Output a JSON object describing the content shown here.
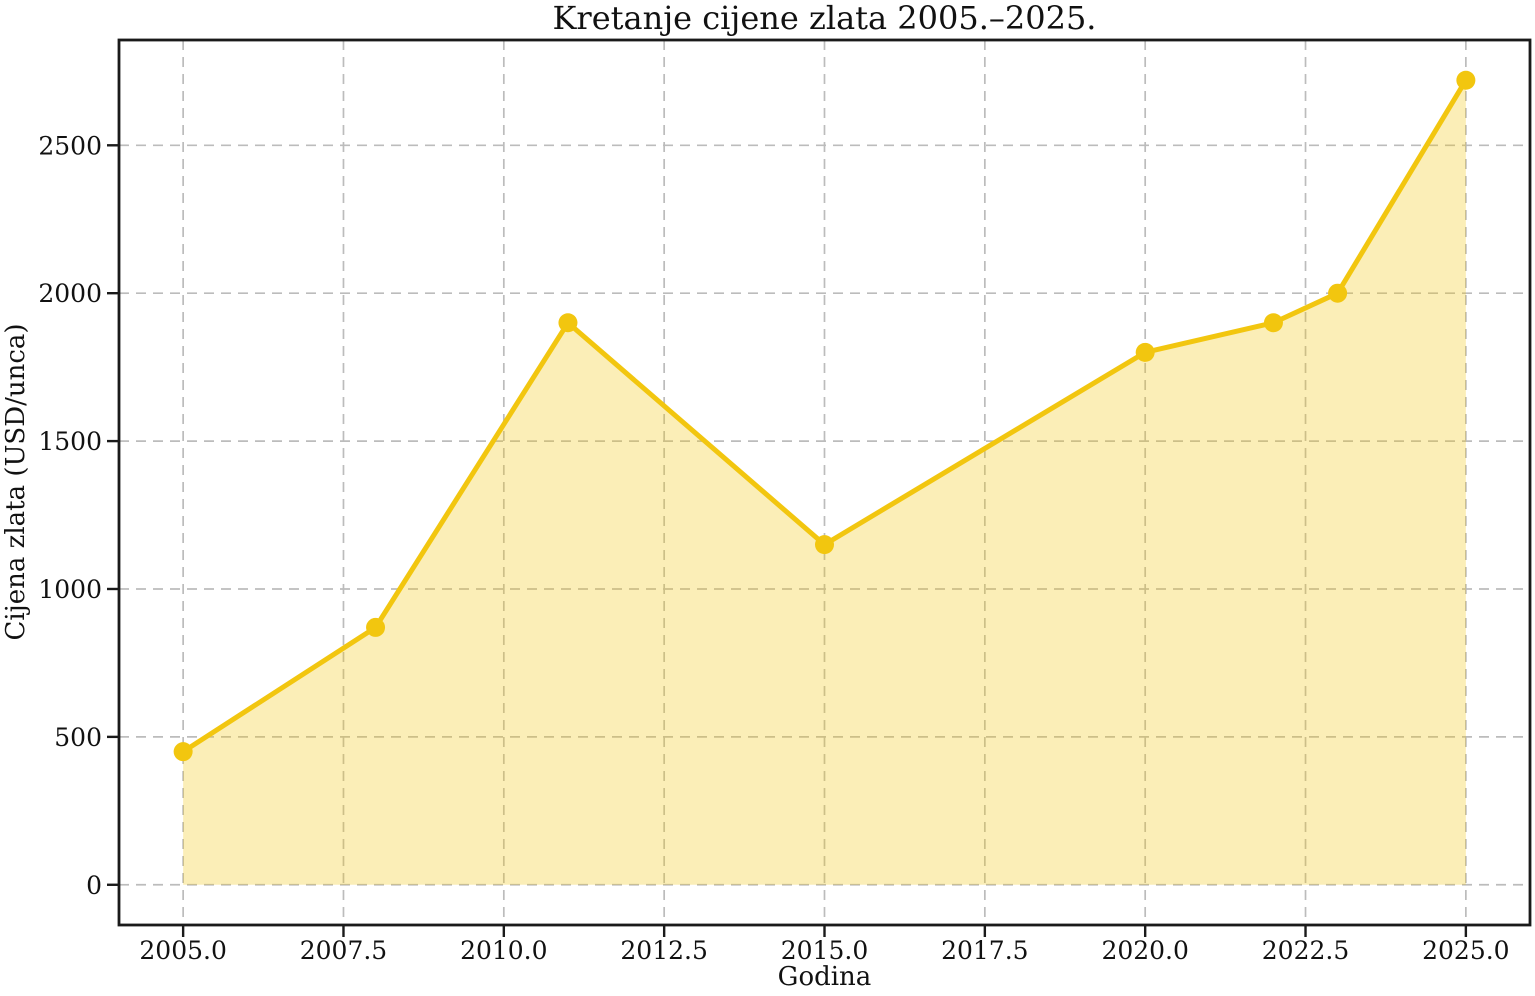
{
  "chart_data": {
    "type": "area",
    "title": "Kretanje cijene zlata 2005.–2025.",
    "xlabel": "Godina",
    "ylabel": "Cijena zlata (USD/unca)",
    "series": [
      {
        "name": "Cijena zlata (USD/unca)",
        "x": [
          2005,
          2008,
          2011,
          2015,
          2020,
          2022,
          2023,
          2025
        ],
        "y": [
          450,
          870,
          1900,
          1150,
          1800,
          1900,
          2000,
          2720
        ]
      }
    ],
    "baseline": 0,
    "xlim": [
      2004,
      2026
    ],
    "ylim": [
      -136,
      2856
    ],
    "xticks": {
      "values": [
        2005,
        2007.5,
        2010,
        2012.5,
        2015,
        2017.5,
        2020,
        2022.5,
        2025
      ],
      "labels": [
        "2005.0",
        "2007.5",
        "2010.0",
        "2012.5",
        "2015.0",
        "2017.5",
        "2020.0",
        "2022.5",
        "2025.0"
      ]
    },
    "yticks": {
      "values": [
        0,
        500,
        1000,
        1500,
        2000,
        2500
      ],
      "labels": [
        "0",
        "500",
        "1000",
        "1500",
        "2000",
        "2500"
      ]
    },
    "grid": true,
    "grid_style": "dashed",
    "legend": "none",
    "line_color": "#F2C60F",
    "fill_color": "#F2C60F",
    "fill_opacity": 0.3,
    "marker": "circle",
    "marker_size": 9.5,
    "line_width": 5,
    "background_color": "#ffffff"
  }
}
